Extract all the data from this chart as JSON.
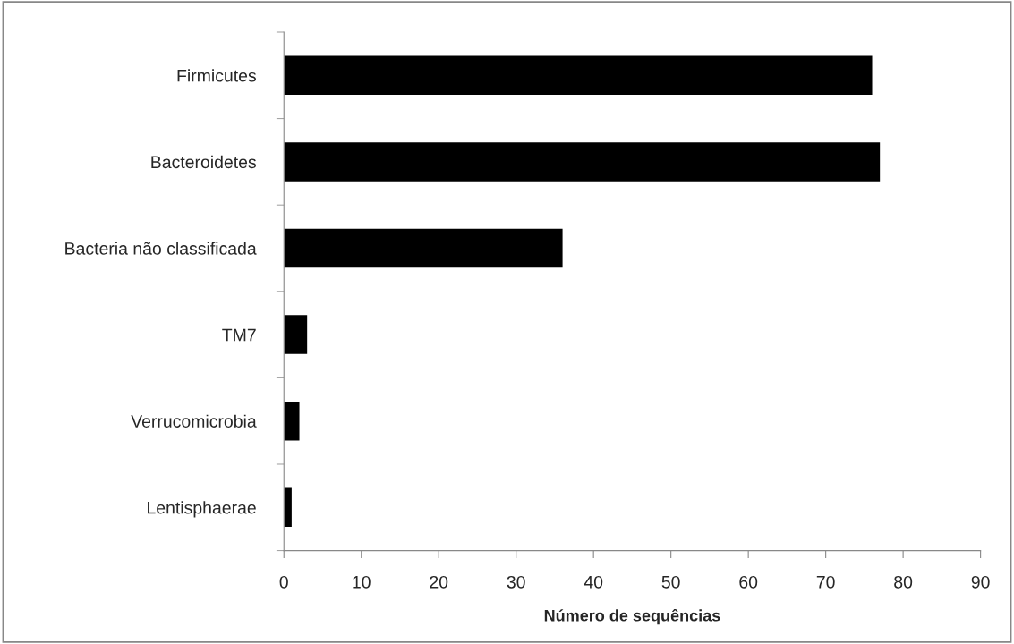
{
  "chart_data": {
    "type": "bar",
    "orientation": "horizontal",
    "xlabel": "Número de sequências",
    "categories": [
      "Firmicutes",
      "Bacteroidetes",
      "Bacteria não classificada",
      "TM7",
      "Verrucomicrobia",
      "Lentisphaerae"
    ],
    "values": [
      76,
      77,
      36,
      3,
      2,
      1
    ],
    "color": "#000000",
    "xlim": [
      0,
      90
    ],
    "xticks": [
      0,
      10,
      20,
      30,
      40,
      50,
      60,
      70,
      80,
      90
    ],
    "grid": false,
    "legend": false
  }
}
